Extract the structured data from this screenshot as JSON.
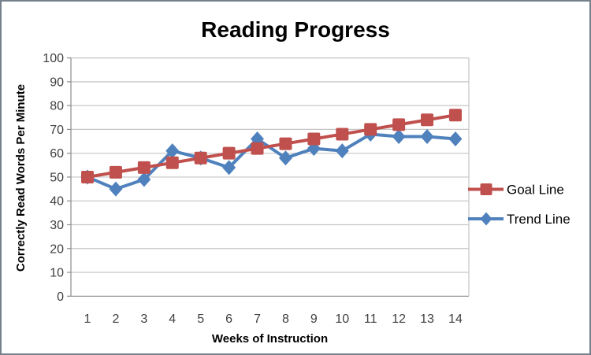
{
  "chart_data": {
    "type": "line",
    "title": "Reading Progress",
    "xlabel": "Weeks of Instruction",
    "ylabel": "Correctly Read Words Per Minute",
    "categories": [
      "1",
      "2",
      "3",
      "4",
      "5",
      "6",
      "7",
      "8",
      "9",
      "10",
      "11",
      "12",
      "13",
      "14"
    ],
    "series": [
      {
        "name": "Goal Line",
        "color": "#C0504D",
        "marker": "square",
        "values": [
          50,
          52,
          54,
          56,
          58,
          60,
          62,
          64,
          66,
          68,
          70,
          72,
          74,
          76
        ]
      },
      {
        "name": "Trend Line",
        "color": "#4F81BD",
        "marker": "diamond",
        "values": [
          50,
          45,
          49,
          61,
          58,
          54,
          66,
          58,
          62,
          61,
          68,
          67,
          67,
          66
        ]
      }
    ],
    "ylim": [
      0,
      100
    ],
    "ytick_step": 10,
    "grid": true,
    "legend_position": "right",
    "colors": {
      "grid": "#C6C6C6",
      "axis": "#8C8C8C",
      "tick_text": "#3F3F3F",
      "legend_text": "#000000"
    }
  }
}
